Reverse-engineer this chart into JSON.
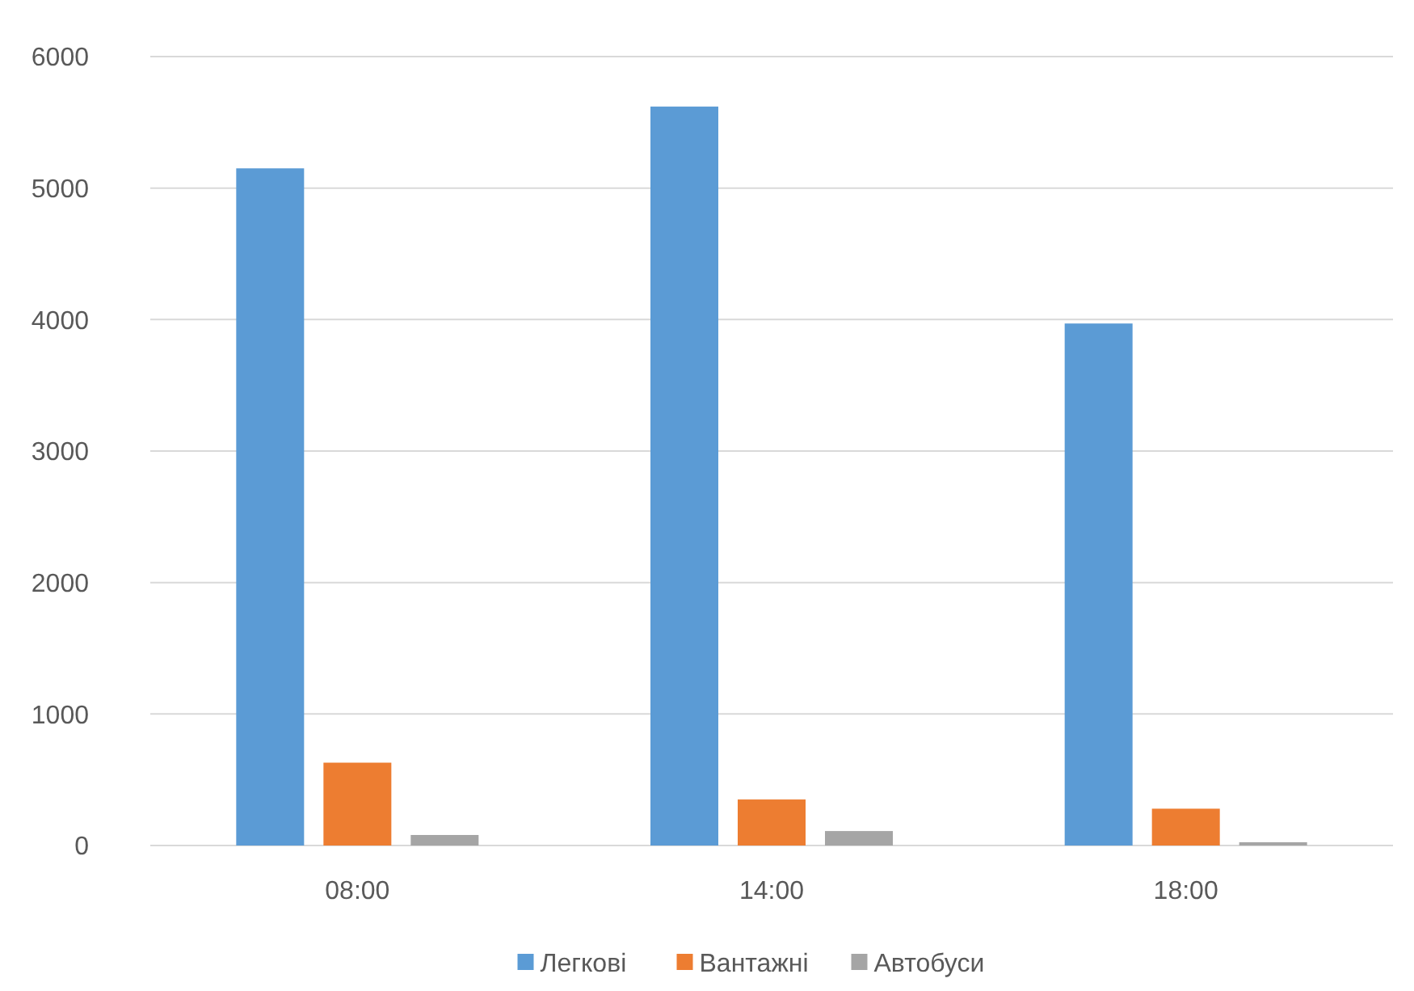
{
  "chart_data": {
    "type": "bar",
    "categories": [
      "08:00",
      "14:00",
      "18:00"
    ],
    "series": [
      {
        "name": "Легкові",
        "color": "#5b9bd5",
        "values": [
          5150,
          5620,
          3970
        ]
      },
      {
        "name": "Вантажні",
        "color": "#ed7d31",
        "values": [
          630,
          350,
          280
        ]
      },
      {
        "name": "Автобуси",
        "color": "#a5a5a5",
        "values": [
          80,
          110,
          25
        ]
      }
    ],
    "ylim": [
      0,
      6000
    ],
    "yticks": [
      0,
      1000,
      2000,
      3000,
      4000,
      5000,
      6000
    ],
    "grid": "y",
    "legend": "bottom"
  }
}
